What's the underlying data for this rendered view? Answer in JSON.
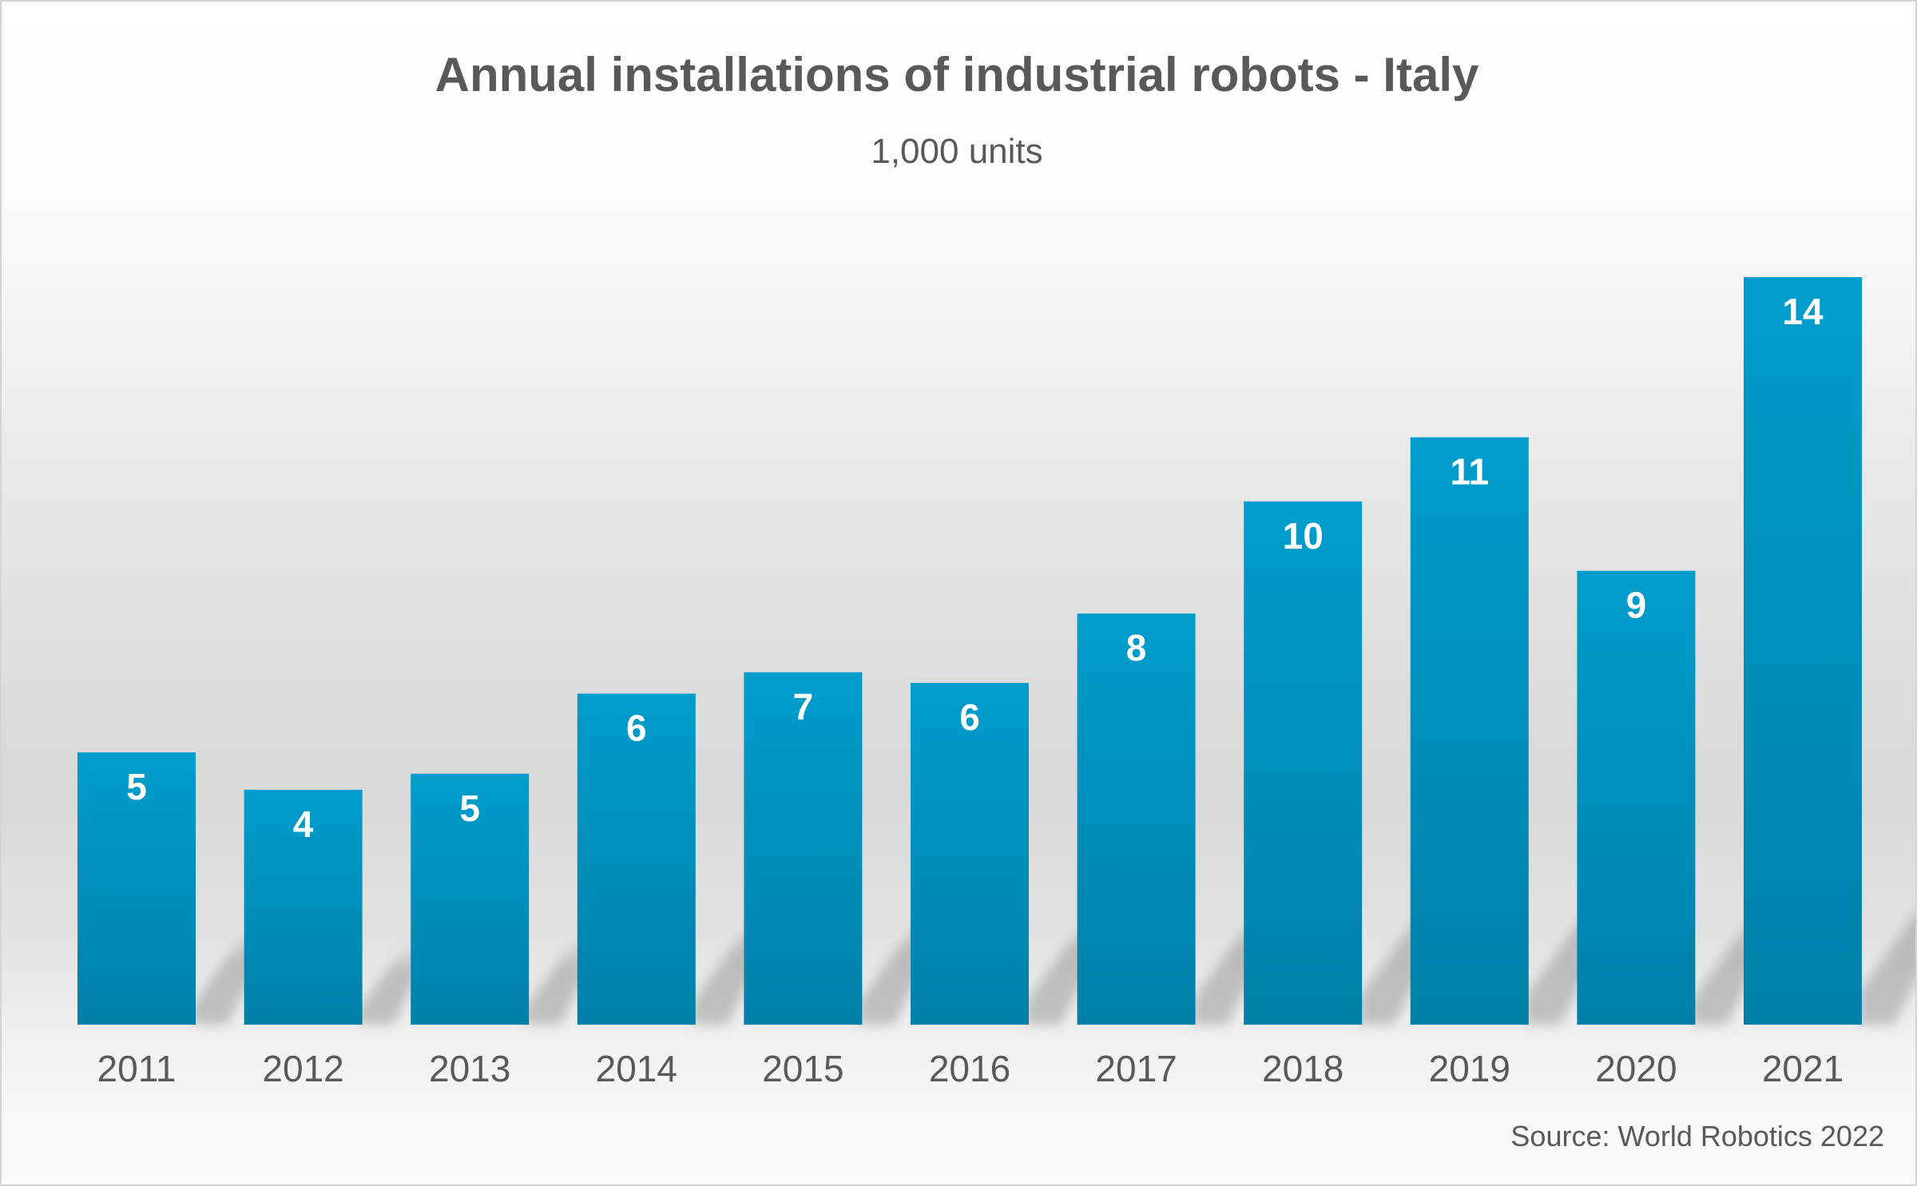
{
  "chart_data": {
    "type": "bar",
    "title": "Annual installations of industrial robots - Italy",
    "subtitle": "1,000 units",
    "xlabel": "",
    "ylabel": "",
    "categories": [
      "2011",
      "2012",
      "2013",
      "2014",
      "2015",
      "2016",
      "2017",
      "2018",
      "2019",
      "2020",
      "2021"
    ],
    "values": [
      5.1,
      4.4,
      4.7,
      6.2,
      6.6,
      6.4,
      7.7,
      9.8,
      11.0,
      8.5,
      14.0
    ],
    "data_labels": [
      "5",
      "4",
      "5",
      "6",
      "7",
      "6",
      "8",
      "10",
      "11",
      "9",
      "14"
    ],
    "ylim": [
      0,
      14
    ],
    "grid": false,
    "legend": "none",
    "y_axis_visible": false,
    "source": "Source: World Robotics 2022",
    "colors": {
      "bar_top": "#009dcc",
      "bar_bottom": "#0080a8",
      "text": "#595959",
      "data_label": "#ffffff"
    }
  }
}
